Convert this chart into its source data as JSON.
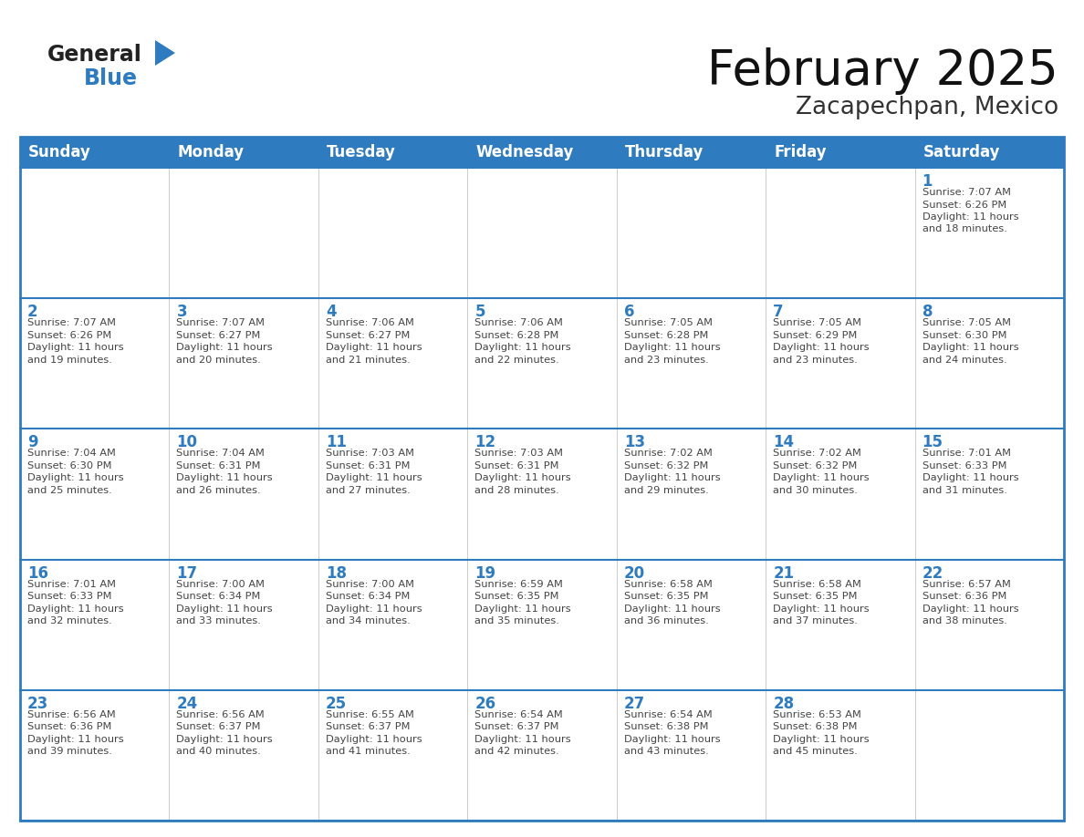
{
  "title": "February 2025",
  "subtitle": "Zacapechpan, Mexico",
  "header_bg": "#2E7BBF",
  "header_text_color": "#FFFFFF",
  "border_color": "#2E7BBF",
  "text_color": "#444444",
  "day_number_color": "#2E7BBF",
  "days_of_week": [
    "Sunday",
    "Monday",
    "Tuesday",
    "Wednesday",
    "Thursday",
    "Friday",
    "Saturday"
  ],
  "calendar_data": [
    [
      null,
      null,
      null,
      null,
      null,
      null,
      {
        "day": 1,
        "sunrise": "7:07 AM",
        "sunset": "6:26 PM",
        "daylight": "11 hours\nand 18 minutes."
      }
    ],
    [
      {
        "day": 2,
        "sunrise": "7:07 AM",
        "sunset": "6:26 PM",
        "daylight": "11 hours\nand 19 minutes."
      },
      {
        "day": 3,
        "sunrise": "7:07 AM",
        "sunset": "6:27 PM",
        "daylight": "11 hours\nand 20 minutes."
      },
      {
        "day": 4,
        "sunrise": "7:06 AM",
        "sunset": "6:27 PM",
        "daylight": "11 hours\nand 21 minutes."
      },
      {
        "day": 5,
        "sunrise": "7:06 AM",
        "sunset": "6:28 PM",
        "daylight": "11 hours\nand 22 minutes."
      },
      {
        "day": 6,
        "sunrise": "7:05 AM",
        "sunset": "6:28 PM",
        "daylight": "11 hours\nand 23 minutes."
      },
      {
        "day": 7,
        "sunrise": "7:05 AM",
        "sunset": "6:29 PM",
        "daylight": "11 hours\nand 23 minutes."
      },
      {
        "day": 8,
        "sunrise": "7:05 AM",
        "sunset": "6:30 PM",
        "daylight": "11 hours\nand 24 minutes."
      }
    ],
    [
      {
        "day": 9,
        "sunrise": "7:04 AM",
        "sunset": "6:30 PM",
        "daylight": "11 hours\nand 25 minutes."
      },
      {
        "day": 10,
        "sunrise": "7:04 AM",
        "sunset": "6:31 PM",
        "daylight": "11 hours\nand 26 minutes."
      },
      {
        "day": 11,
        "sunrise": "7:03 AM",
        "sunset": "6:31 PM",
        "daylight": "11 hours\nand 27 minutes."
      },
      {
        "day": 12,
        "sunrise": "7:03 AM",
        "sunset": "6:31 PM",
        "daylight": "11 hours\nand 28 minutes."
      },
      {
        "day": 13,
        "sunrise": "7:02 AM",
        "sunset": "6:32 PM",
        "daylight": "11 hours\nand 29 minutes."
      },
      {
        "day": 14,
        "sunrise": "7:02 AM",
        "sunset": "6:32 PM",
        "daylight": "11 hours\nand 30 minutes."
      },
      {
        "day": 15,
        "sunrise": "7:01 AM",
        "sunset": "6:33 PM",
        "daylight": "11 hours\nand 31 minutes."
      }
    ],
    [
      {
        "day": 16,
        "sunrise": "7:01 AM",
        "sunset": "6:33 PM",
        "daylight": "11 hours\nand 32 minutes."
      },
      {
        "day": 17,
        "sunrise": "7:00 AM",
        "sunset": "6:34 PM",
        "daylight": "11 hours\nand 33 minutes."
      },
      {
        "day": 18,
        "sunrise": "7:00 AM",
        "sunset": "6:34 PM",
        "daylight": "11 hours\nand 34 minutes."
      },
      {
        "day": 19,
        "sunrise": "6:59 AM",
        "sunset": "6:35 PM",
        "daylight": "11 hours\nand 35 minutes."
      },
      {
        "day": 20,
        "sunrise": "6:58 AM",
        "sunset": "6:35 PM",
        "daylight": "11 hours\nand 36 minutes."
      },
      {
        "day": 21,
        "sunrise": "6:58 AM",
        "sunset": "6:35 PM",
        "daylight": "11 hours\nand 37 minutes."
      },
      {
        "day": 22,
        "sunrise": "6:57 AM",
        "sunset": "6:36 PM",
        "daylight": "11 hours\nand 38 minutes."
      }
    ],
    [
      {
        "day": 23,
        "sunrise": "6:56 AM",
        "sunset": "6:36 PM",
        "daylight": "11 hours\nand 39 minutes."
      },
      {
        "day": 24,
        "sunrise": "6:56 AM",
        "sunset": "6:37 PM",
        "daylight": "11 hours\nand 40 minutes."
      },
      {
        "day": 25,
        "sunrise": "6:55 AM",
        "sunset": "6:37 PM",
        "daylight": "11 hours\nand 41 minutes."
      },
      {
        "day": 26,
        "sunrise": "6:54 AM",
        "sunset": "6:37 PM",
        "daylight": "11 hours\nand 42 minutes."
      },
      {
        "day": 27,
        "sunrise": "6:54 AM",
        "sunset": "6:38 PM",
        "daylight": "11 hours\nand 43 minutes."
      },
      {
        "day": 28,
        "sunrise": "6:53 AM",
        "sunset": "6:38 PM",
        "daylight": "11 hours\nand 45 minutes."
      },
      null
    ]
  ]
}
